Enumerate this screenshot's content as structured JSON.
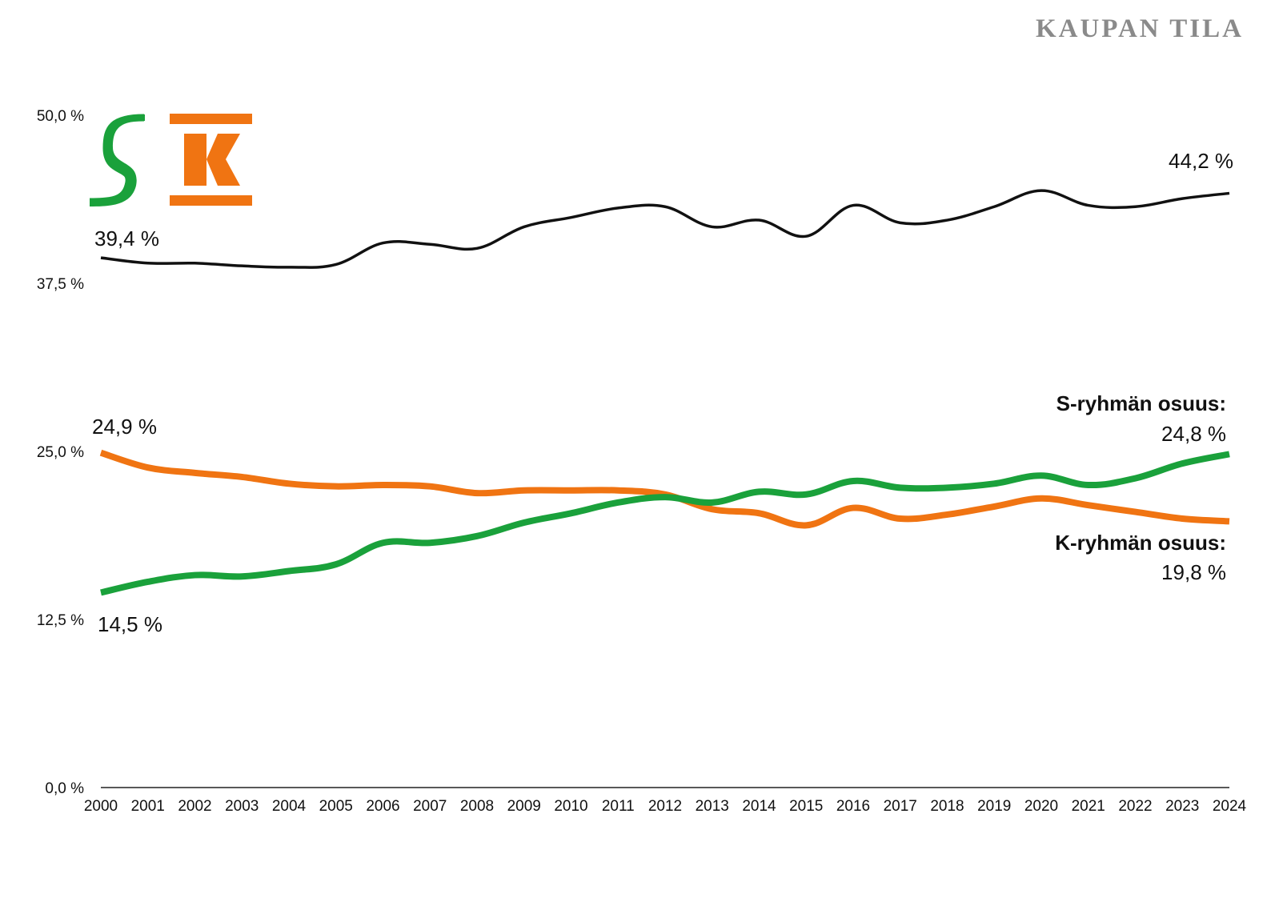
{
  "header": {
    "brand": "KAUPAN TILA"
  },
  "logos": {
    "s_group": "S",
    "k_group": "K"
  },
  "colors": {
    "combined": "#111111",
    "s_group": "#1aa13b",
    "k_group": "#f07412"
  },
  "chart_data": {
    "type": "line",
    "title": "",
    "xlabel": "",
    "ylabel": "",
    "ylim": [
      0,
      50
    ],
    "ytick_labels": [
      "0,0 %",
      "12,5 %",
      "25,0 %",
      "37,5 %",
      "50,0 %"
    ],
    "yticks": [
      0,
      12.5,
      25,
      37.5,
      50
    ],
    "x": [
      2000,
      2001,
      2002,
      2003,
      2004,
      2005,
      2006,
      2007,
      2008,
      2009,
      2010,
      2011,
      2012,
      2013,
      2014,
      2015,
      2016,
      2017,
      2018,
      2019,
      2020,
      2021,
      2022,
      2023,
      2024
    ],
    "series": [
      {
        "key": "combined",
        "values": [
          39.4,
          39.0,
          39.0,
          38.8,
          38.7,
          38.9,
          40.5,
          40.4,
          40.1,
          41.7,
          42.4,
          43.1,
          43.2,
          41.7,
          42.2,
          41.0,
          43.3,
          42.0,
          42.2,
          43.2,
          44.4,
          43.3,
          43.2,
          43.8,
          44.2
        ]
      },
      {
        "key": "s_group",
        "values": [
          14.5,
          15.3,
          15.8,
          15.7,
          16.1,
          16.6,
          18.2,
          18.2,
          18.7,
          19.7,
          20.4,
          21.2,
          21.6,
          21.2,
          22.0,
          21.8,
          22.8,
          22.3,
          22.3,
          22.6,
          23.2,
          22.5,
          23.0,
          24.1,
          24.8
        ]
      },
      {
        "key": "k_group",
        "values": [
          24.9,
          23.8,
          23.4,
          23.1,
          22.6,
          22.4,
          22.5,
          22.4,
          21.9,
          22.1,
          22.1,
          22.1,
          21.8,
          20.7,
          20.4,
          19.5,
          20.8,
          20.0,
          20.3,
          20.9,
          21.5,
          21.0,
          20.5,
          20.0,
          19.8
        ]
      }
    ],
    "labels": {
      "combined_start": "39,4 %",
      "combined_end": "44,2 %",
      "k_start": "24,9 %",
      "s_start": "14,5 %",
      "s_end_title": "S-ryhmän osuus:",
      "s_end_value": "24,8 %",
      "k_end_title": "K-ryhmän osuus:",
      "k_end_value": "19,8 %"
    },
    "grid": false,
    "legend": "none"
  }
}
